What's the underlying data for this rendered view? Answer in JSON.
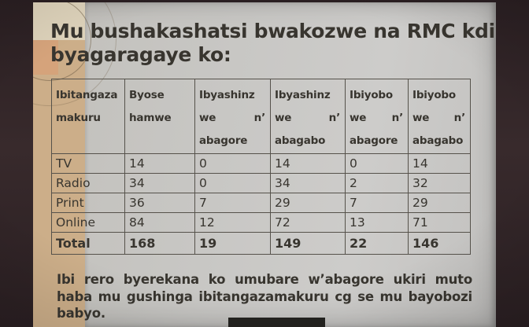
{
  "slide": {
    "title_line1": "Mu bushakashatsi bwakozwe na RMC kdi",
    "title_line2": "byagaragaye ko:",
    "table": {
      "headers": [
        {
          "l1": "Ibitangaza",
          "l2a": "makuru",
          "l2b": "",
          "l3": ""
        },
        {
          "l1": "Byose",
          "l2a": "hamwe",
          "l2b": "",
          "l3": ""
        },
        {
          "l1": "Ibyashinz",
          "l2a": "we",
          "l2b": "n’",
          "l3": "abagore"
        },
        {
          "l1": "Ibyashinz",
          "l2a": "we",
          "l2b": "n’",
          "l3": "abagabo"
        },
        {
          "l1": "Ibiyobo",
          "l2a": "we",
          "l2b": "n’",
          "l3": "abagore"
        },
        {
          "l1": "Ibiyobo",
          "l2a": "we",
          "l2b": "n’",
          "l3": "abagabo"
        }
      ],
      "rows": [
        {
          "label": "TV",
          "values": [
            "14",
            "0",
            "14",
            "0",
            "14"
          ]
        },
        {
          "label": "Radio",
          "values": [
            "34",
            "0",
            "34",
            "2",
            "32"
          ]
        },
        {
          "label": "Print",
          "values": [
            "36",
            "7",
            "29",
            "7",
            "29"
          ]
        },
        {
          "label": "Online",
          "values": [
            "84",
            "12",
            "72",
            "13",
            "71"
          ]
        },
        {
          "label": "Total",
          "values": [
            "168",
            "19",
            "149",
            "22",
            "146"
          ]
        }
      ]
    },
    "footer_line1": "Ibi rero byerekana ko umubare w’abagore ukiri muto",
    "footer_line2": "haba mu gushinga ibitangazamakuru cg se mu bayobozi",
    "footer_line3": "babyo.",
    "colors": {
      "photo_frame": "#2a1f22",
      "photo_frame_light": "#382a2c",
      "slide_bg": "#c7c6c3",
      "band": "#ccae89",
      "band_top": "#ddd2ba",
      "band_accent": "#d5a37b",
      "table_border": "#56524b",
      "text": "#38352f",
      "overlay_rect": "#242320"
    }
  }
}
